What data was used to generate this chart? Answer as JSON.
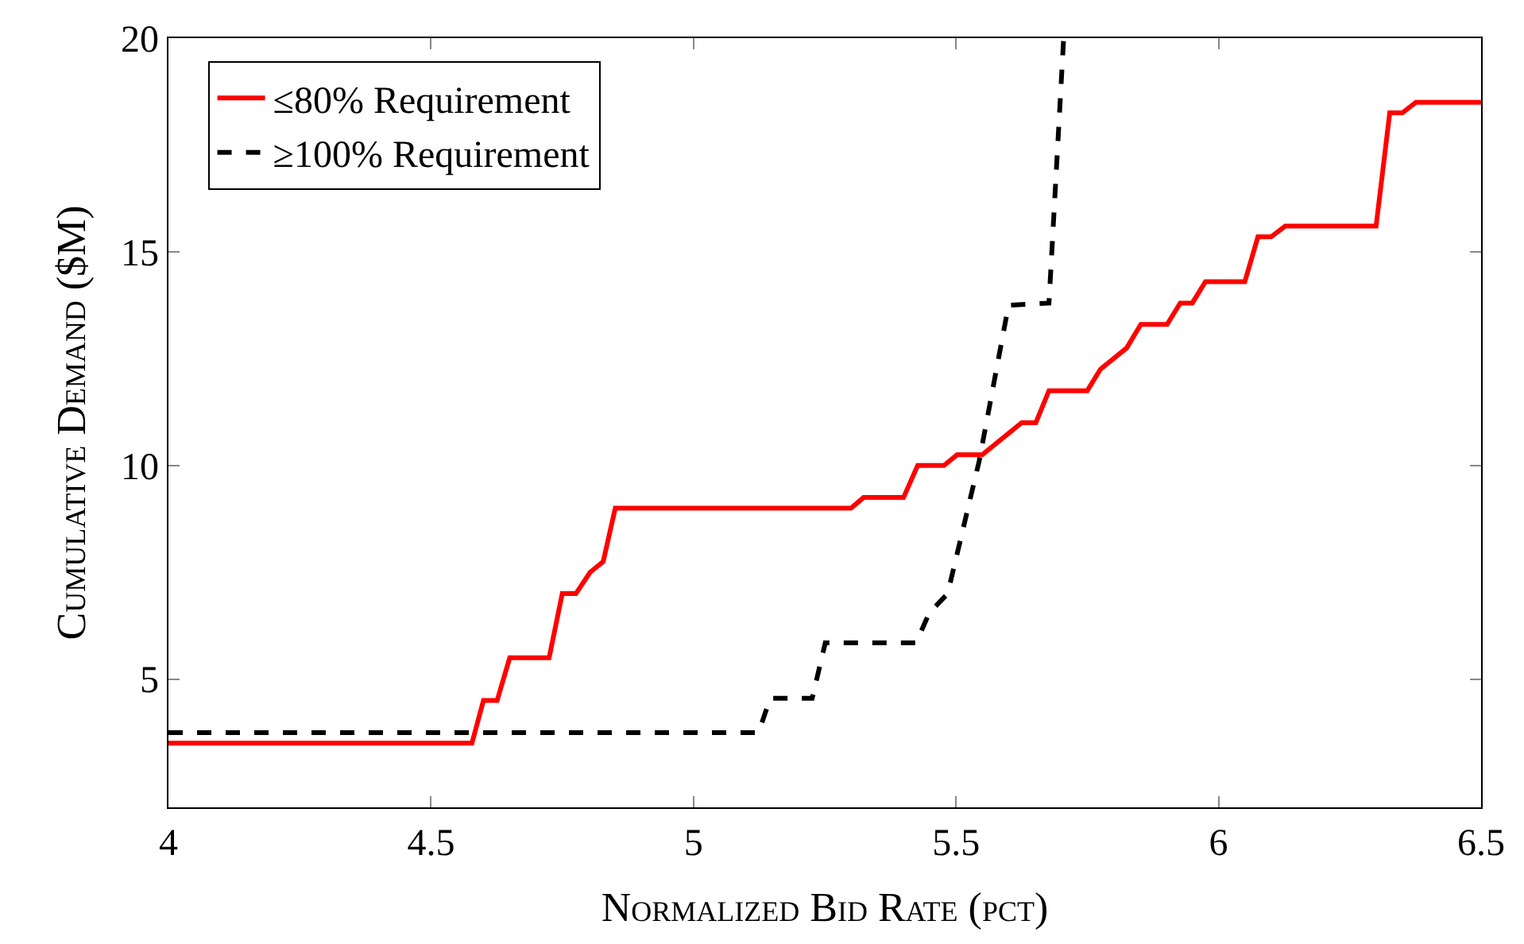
{
  "chart_data": {
    "type": "line",
    "xlabel": "Normalized Bid Rate (pct)",
    "ylabel": "Cumulative Demand ($M)",
    "xlim": [
      4,
      6.5
    ],
    "xticks": [
      4,
      4.5,
      5,
      5.5,
      6,
      6.5
    ],
    "ylim": [
      2,
      20
    ],
    "yticks": [
      5,
      10,
      15,
      20
    ],
    "legend": "top left",
    "marker": "none",
    "series": [
      {
        "name": "≤80% Requirement",
        "color": "#ff0000",
        "line_style": "solid",
        "x": [
          4.0,
          4.578,
          4.6,
          4.626,
          4.65,
          4.725,
          4.75,
          4.776,
          4.803,
          4.828,
          4.851,
          5.3,
          5.324,
          5.4,
          5.427,
          5.477,
          5.502,
          5.55,
          5.625,
          5.652,
          5.677,
          5.75,
          5.775,
          5.825,
          5.852,
          5.902,
          5.927,
          5.95,
          5.975,
          6.05,
          6.075,
          6.1,
          6.127,
          6.3,
          6.326,
          6.35,
          6.376,
          6.5
        ],
        "values": [
          3.5,
          3.5,
          4.5,
          4.5,
          5.5,
          5.5,
          7.0,
          7.0,
          7.5,
          7.75,
          9.0,
          9.0,
          9.25,
          9.25,
          10.0,
          10.0,
          10.25,
          10.25,
          11.0,
          11.0,
          11.75,
          11.75,
          12.25,
          12.75,
          13.3,
          13.3,
          13.8,
          13.8,
          14.3,
          14.3,
          15.35,
          15.35,
          15.6,
          15.6,
          18.25,
          18.25,
          18.5,
          18.5
        ]
      },
      {
        "name": "≥100% Requirement",
        "color": "#000000",
        "line_style": "dashed",
        "x": [
          4.0,
          5.124,
          5.146,
          5.226,
          5.251,
          5.424,
          5.449,
          5.484,
          5.544,
          5.6,
          5.677,
          5.705
        ],
        "values": [
          3.75,
          3.75,
          4.55,
          4.55,
          5.85,
          5.85,
          6.55,
          7.0,
          10.1,
          13.75,
          13.8,
          20
        ]
      }
    ]
  }
}
